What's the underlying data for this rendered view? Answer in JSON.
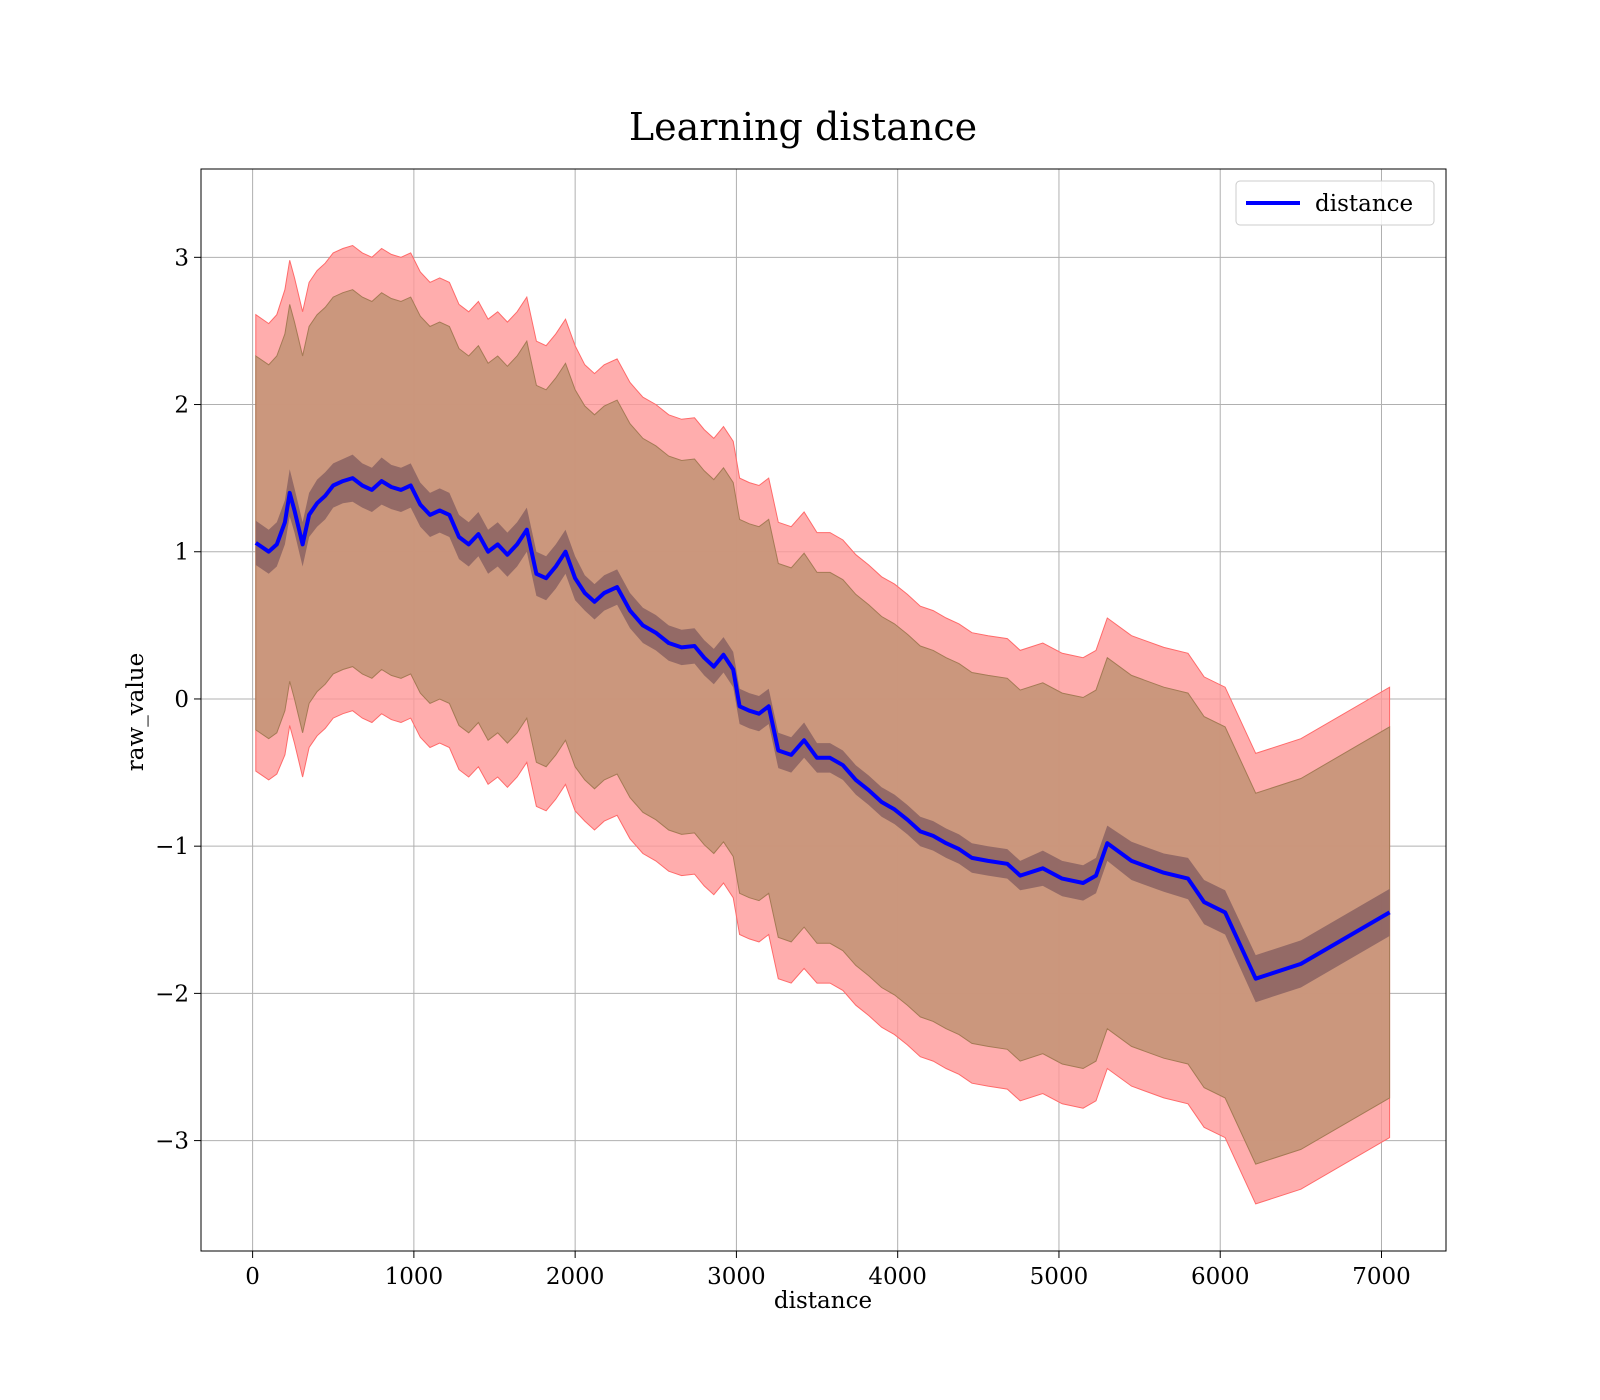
{
  "chart_data": {
    "type": "line",
    "title": "Learning distance",
    "xlabel": "distance",
    "ylabel": "raw_value",
    "xlim": [
      -320,
      7400
    ],
    "ylim": [
      -3.75,
      3.6
    ],
    "xticks": [
      0,
      1000,
      2000,
      3000,
      4000,
      5000,
      6000,
      7000
    ],
    "xtick_labels": [
      "0",
      "1000",
      "2000",
      "3000",
      "4000",
      "5000",
      "6000",
      "7000"
    ],
    "yticks": [
      -3,
      -2,
      -1,
      0,
      1,
      2,
      3
    ],
    "ytick_labels": [
      "−3",
      "−2",
      "−1",
      "0",
      "1",
      "2",
      "3"
    ],
    "grid": true,
    "legend": {
      "placement": "top-right",
      "entries": [
        "distance"
      ]
    },
    "colors": {
      "line": "#0000ff",
      "outer_band": "#ff9999",
      "inner_band": "#8b6161",
      "middle_band": "#c8967a"
    },
    "series": [
      {
        "name": "distance",
        "x": [
          20,
          100,
          150,
          200,
          230,
          260,
          310,
          350,
          400,
          450,
          500,
          560,
          620,
          680,
          740,
          800,
          860,
          920,
          980,
          1040,
          1100,
          1160,
          1220,
          1280,
          1340,
          1400,
          1460,
          1520,
          1580,
          1640,
          1700,
          1760,
          1820,
          1880,
          1940,
          2000,
          2060,
          2120,
          2180,
          2260,
          2340,
          2420,
          2500,
          2580,
          2660,
          2740,
          2800,
          2860,
          2920,
          2980,
          3020,
          3080,
          3140,
          3200,
          3260,
          3340,
          3420,
          3500,
          3580,
          3660,
          3740,
          3820,
          3900,
          3980,
          4060,
          4140,
          4220,
          4300,
          4380,
          4460,
          4560,
          4680,
          4760,
          4900,
          5020,
          5150,
          5230,
          5300,
          5450,
          5650,
          5800,
          5900,
          6030,
          6220,
          6500,
          7050
        ],
        "y": [
          1.06,
          1.0,
          1.05,
          1.2,
          1.4,
          1.28,
          1.05,
          1.25,
          1.33,
          1.38,
          1.45,
          1.48,
          1.5,
          1.45,
          1.42,
          1.48,
          1.44,
          1.42,
          1.45,
          1.32,
          1.25,
          1.28,
          1.25,
          1.1,
          1.05,
          1.12,
          1.0,
          1.05,
          0.98,
          1.05,
          1.15,
          0.85,
          0.82,
          0.9,
          1.0,
          0.82,
          0.72,
          0.66,
          0.72,
          0.76,
          0.6,
          0.5,
          0.45,
          0.38,
          0.35,
          0.36,
          0.28,
          0.22,
          0.3,
          0.2,
          -0.05,
          -0.08,
          -0.1,
          -0.05,
          -0.35,
          -0.38,
          -0.28,
          -0.4,
          -0.4,
          -0.45,
          -0.55,
          -0.62,
          -0.7,
          -0.75,
          -0.82,
          -0.9,
          -0.93,
          -0.98,
          -1.02,
          -1.08,
          -1.1,
          -1.12,
          -1.2,
          -1.15,
          -1.22,
          -1.25,
          -1.2,
          -0.98,
          -1.1,
          -1.18,
          -1.22,
          -1.38,
          -1.45,
          -1.9,
          -1.8,
          -1.45
        ],
        "inner_spread": [
          0.15,
          0.15,
          0.15,
          0.15,
          0.16,
          0.15,
          0.15,
          0.15,
          0.16,
          0.16,
          0.15,
          0.15,
          0.16,
          0.15,
          0.15,
          0.16,
          0.15,
          0.15,
          0.15,
          0.15,
          0.15,
          0.15,
          0.15,
          0.15,
          0.15,
          0.15,
          0.15,
          0.15,
          0.15,
          0.15,
          0.15,
          0.15,
          0.15,
          0.15,
          0.15,
          0.15,
          0.12,
          0.12,
          0.12,
          0.12,
          0.12,
          0.12,
          0.12,
          0.12,
          0.12,
          0.12,
          0.12,
          0.12,
          0.12,
          0.12,
          0.12,
          0.12,
          0.12,
          0.12,
          0.12,
          0.12,
          0.12,
          0.1,
          0.1,
          0.1,
          0.1,
          0.1,
          0.1,
          0.1,
          0.1,
          0.1,
          0.1,
          0.1,
          0.1,
          0.1,
          0.1,
          0.1,
          0.1,
          0.12,
          0.12,
          0.12,
          0.12,
          0.12,
          0.13,
          0.13,
          0.14,
          0.15,
          0.15,
          0.16,
          0.16,
          0.16
        ],
        "outer_spread": [
          1.55,
          1.55,
          1.56,
          1.58,
          1.58,
          1.58,
          1.58,
          1.58,
          1.58,
          1.58,
          1.58,
          1.58,
          1.58,
          1.58,
          1.58,
          1.58,
          1.58,
          1.58,
          1.58,
          1.58,
          1.58,
          1.58,
          1.58,
          1.58,
          1.58,
          1.58,
          1.58,
          1.58,
          1.58,
          1.58,
          1.58,
          1.58,
          1.58,
          1.58,
          1.58,
          1.58,
          1.55,
          1.55,
          1.55,
          1.55,
          1.55,
          1.55,
          1.55,
          1.55,
          1.55,
          1.55,
          1.55,
          1.55,
          1.55,
          1.55,
          1.55,
          1.55,
          1.55,
          1.55,
          1.55,
          1.55,
          1.55,
          1.53,
          1.53,
          1.53,
          1.53,
          1.53,
          1.53,
          1.53,
          1.53,
          1.53,
          1.53,
          1.53,
          1.53,
          1.53,
          1.53,
          1.53,
          1.53,
          1.53,
          1.53,
          1.53,
          1.53,
          1.53,
          1.53,
          1.53,
          1.53,
          1.53,
          1.53,
          1.53,
          1.53,
          1.53
        ],
        "middle_spread": [
          1.27,
          1.27,
          1.28,
          1.28,
          1.28,
          1.28,
          1.28,
          1.28,
          1.28,
          1.28,
          1.28,
          1.28,
          1.28,
          1.28,
          1.28,
          1.28,
          1.28,
          1.28,
          1.28,
          1.28,
          1.28,
          1.28,
          1.28,
          1.28,
          1.28,
          1.28,
          1.28,
          1.28,
          1.28,
          1.28,
          1.28,
          1.28,
          1.28,
          1.28,
          1.28,
          1.28,
          1.27,
          1.27,
          1.27,
          1.27,
          1.27,
          1.27,
          1.27,
          1.27,
          1.27,
          1.27,
          1.27,
          1.27,
          1.27,
          1.27,
          1.27,
          1.27,
          1.27,
          1.27,
          1.27,
          1.27,
          1.27,
          1.26,
          1.26,
          1.26,
          1.26,
          1.26,
          1.26,
          1.26,
          1.26,
          1.26,
          1.26,
          1.26,
          1.26,
          1.26,
          1.26,
          1.26,
          1.26,
          1.26,
          1.26,
          1.26,
          1.26,
          1.26,
          1.26,
          1.26,
          1.26,
          1.26,
          1.26,
          1.26,
          1.26,
          1.26
        ]
      }
    ]
  }
}
